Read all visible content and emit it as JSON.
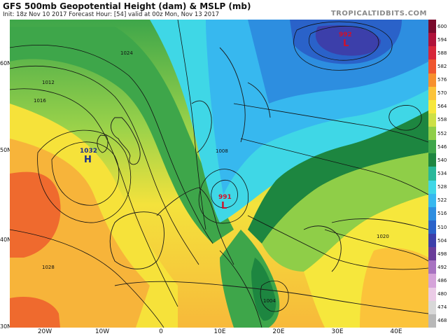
{
  "header": {
    "title": "GFS 500mb Geopotential Height (dam) & MSLP (mb)",
    "subtitle": "Init: 18z Nov 10 2017   Forecast Hour: [54]   valid at 00z Mon, Nov 13 2017",
    "brand": "TROPICALTIDBITS.COM"
  },
  "axes": {
    "lat_labels": [
      "60N",
      "50N",
      "40N",
      "30N"
    ],
    "lon_labels": [
      "20W",
      "10W",
      "0",
      "10E",
      "20E",
      "30E",
      "40E"
    ]
  },
  "pressure_centers": [
    {
      "type": "H",
      "value": "1032",
      "color": "#1b2f8c"
    },
    {
      "type": "L",
      "value": "992",
      "color": "#d0112b"
    },
    {
      "type": "L",
      "value": "991",
      "color": "#d0112b"
    }
  ],
  "isobar_labels": [
    "1024",
    "1012",
    "1016",
    "1028",
    "1008",
    "1004",
    "1020"
  ],
  "colorbar": {
    "labels": [
      "600",
      "594",
      "588",
      "582",
      "576",
      "570",
      "564",
      "558",
      "552",
      "546",
      "540",
      "534",
      "528",
      "522",
      "516",
      "510",
      "504",
      "498",
      "492",
      "486",
      "480",
      "474",
      "468"
    ],
    "colors": [
      "#7a0a2c",
      "#b0123a",
      "#d7263a",
      "#ef5630",
      "#f7902e",
      "#fbc33a",
      "#f6e73c",
      "#cde046",
      "#8fce48",
      "#3ea64a",
      "#1d8640",
      "#28b89a",
      "#3fd7e6",
      "#37b8ef",
      "#2d8ee0",
      "#2a62c9",
      "#3c3faa",
      "#6a3d9a",
      "#a873c1",
      "#d5a3d9",
      "#ebcbe6",
      "#d8d8d8",
      "#b8b8b8"
    ]
  }
}
